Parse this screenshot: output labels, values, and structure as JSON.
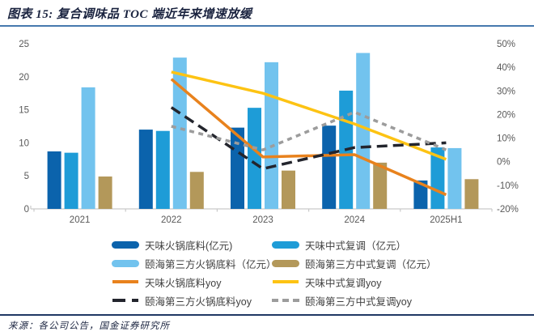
{
  "header": {
    "figure_title": "图表 15: 复合调味品 TOC 端近年来增速放缓"
  },
  "footer": {
    "source": "来源：各公司公告，国金证券研究所"
  },
  "colors": {
    "accent_rule": "#4679ae",
    "footer_rule": "#1f3864",
    "title_text": "#1b2440",
    "axis_text": "#595959",
    "legend_text": "#3f3f3f",
    "axis_line": "#c9c9c9",
    "bar_dark_blue": "#0b63ac",
    "bar_medium_blue": "#1e9cd7",
    "bar_light_blue": "#72c3ee",
    "bar_tan": "#b3985a",
    "line_orange": "#e8821d",
    "line_yellow": "#fdc313",
    "line_black": "#23252d",
    "line_gray": "#9c9c9c"
  },
  "chart_data": {
    "type": "bar+line",
    "categories": [
      "2021",
      "2022",
      "2023",
      "2024",
      "2025H1"
    ],
    "bar_series": [
      {
        "name": "天味火锅底料(亿元)",
        "axis": "left",
        "color": "#0b63ac",
        "values": [
          8.7,
          12.0,
          12.3,
          12.6,
          4.3
        ]
      },
      {
        "name": "天味中式复调（亿元）",
        "axis": "left",
        "color": "#1e9cd7",
        "values": [
          8.5,
          11.8,
          15.3,
          17.9,
          9.3
        ]
      },
      {
        "name": "颐海第三方火锅底料（亿元）",
        "axis": "left",
        "color": "#72c3ee",
        "values": [
          18.4,
          22.9,
          22.2,
          23.6,
          9.2
        ]
      },
      {
        "name": "颐海第三方中式复调（亿元）",
        "axis": "left",
        "color": "#b3985a",
        "values": [
          4.9,
          5.6,
          5.8,
          7.0,
          4.5
        ]
      }
    ],
    "line_series": [
      {
        "name": "天味火锅底料yoy",
        "axis": "right",
        "color": "#e8821d",
        "dash": "solid",
        "values_pct": [
          null,
          35,
          2,
          3,
          -14
        ]
      },
      {
        "name": "天味中式复调yoy",
        "axis": "right",
        "color": "#fdc313",
        "dash": "solid",
        "values_pct": [
          null,
          38,
          29,
          16,
          1
        ]
      },
      {
        "name": "颐海第三方火锅底料yoy",
        "axis": "right",
        "color": "#23252d",
        "dash": "long-dash",
        "values_pct": [
          null,
          23,
          -3,
          6,
          8
        ]
      },
      {
        "name": "颐海第三方中式复调yoy",
        "axis": "right",
        "color": "#9c9c9c",
        "dash": "short-dash",
        "values_pct": [
          null,
          15,
          5,
          21,
          5
        ]
      }
    ],
    "left_axis": {
      "min": 0,
      "max": 25,
      "tick_labels": [
        "0",
        "5",
        "10",
        "15",
        "20",
        "25"
      ]
    },
    "right_axis": {
      "min": -20,
      "max": 50,
      "tick_labels": [
        "-20%",
        "-10%",
        "0%",
        "10%",
        "20%",
        "30%",
        "40%",
        "50%"
      ]
    },
    "grid": false,
    "legend_position": "bottom"
  },
  "legend": {
    "items": [
      {
        "label": "天味火锅底料(亿元)",
        "marker": "bar",
        "color": "#0b63ac"
      },
      {
        "label": "天味中式复调（亿元）",
        "marker": "bar",
        "color": "#1e9cd7"
      },
      {
        "label": "颐海第三方火锅底料（亿元）",
        "marker": "bar",
        "color": "#72c3ee"
      },
      {
        "label": "颐海第三方中式复调（亿元）",
        "marker": "bar",
        "color": "#b3985a"
      },
      {
        "label": "天味火锅底料yoy",
        "marker": "line",
        "color": "#e8821d"
      },
      {
        "label": "天味中式复调yoy",
        "marker": "line",
        "color": "#fdc313"
      },
      {
        "label": "颐海第三方火锅底料yoy",
        "marker": "long-dash",
        "color": "#23252d"
      },
      {
        "label": "颐海第三方中式复调yoy",
        "marker": "short-dash",
        "color": "#9c9c9c"
      }
    ]
  }
}
